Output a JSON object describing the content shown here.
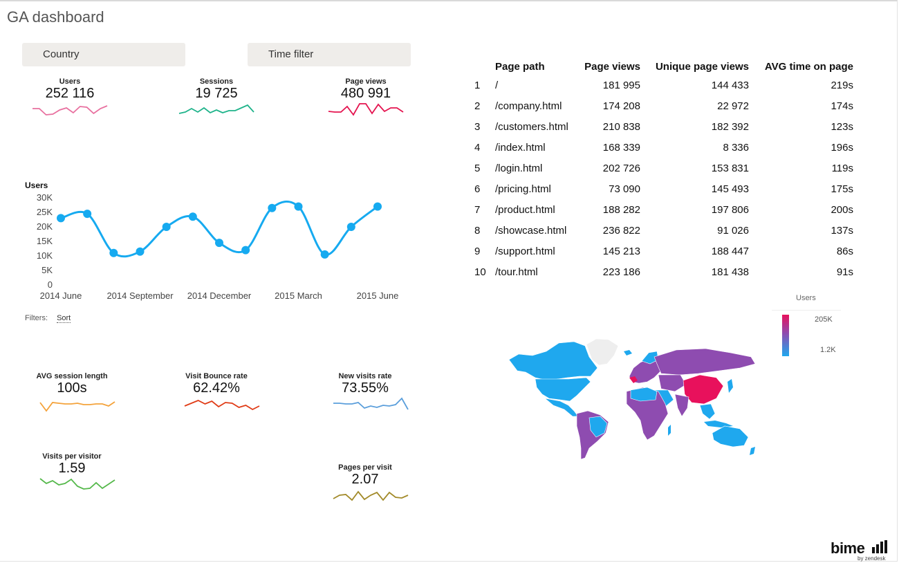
{
  "header": {
    "title": "GA dashboard"
  },
  "filters": {
    "country_label": "Country",
    "time_label": "Time filter"
  },
  "kpis_top": [
    {
      "label": "Users",
      "value": "252 116",
      "color": "#e8709f",
      "spark": [
        0.55,
        0.55,
        0.1,
        0.15,
        0.45,
        0.6,
        0.25,
        0.7,
        0.65,
        0.2,
        0.55,
        0.75
      ]
    },
    {
      "label": "Sessions",
      "value": "19 725",
      "color": "#1eb38a",
      "spark": [
        0.2,
        0.3,
        0.55,
        0.3,
        0.6,
        0.25,
        0.45,
        0.25,
        0.4,
        0.4,
        0.6,
        0.8,
        0.3
      ]
    },
    {
      "label": "Page views",
      "value": "480 991",
      "color": "#e4134f",
      "spark": [
        0.35,
        0.3,
        0.3,
        0.7,
        0.1,
        0.9,
        0.9,
        0.2,
        0.85,
        0.35,
        0.6,
        0.6,
        0.3
      ]
    }
  ],
  "users_chart": {
    "title": "Users",
    "color": "#16aaf0",
    "chart_data": {
      "type": "line",
      "x": [
        "2014-06",
        "2014-07",
        "2014-08",
        "2014-09",
        "2014-10",
        "2014-11",
        "2014-12",
        "2015-01",
        "2015-02",
        "2015-03",
        "2015-04",
        "2015-05",
        "2015-06"
      ],
      "values": [
        23000,
        24500,
        11000,
        11500,
        20000,
        23500,
        14500,
        12000,
        26500,
        27000,
        10500,
        20000,
        27000
      ],
      "ylim": [
        0,
        30000
      ],
      "ytick_labels": [
        "0",
        "5K",
        "10K",
        "15K",
        "20K",
        "25K",
        "30K"
      ],
      "xtick_labels": [
        "2014 June",
        "2014 September",
        "2014 December",
        "2015 March",
        "2015 June"
      ],
      "xtick_index": [
        0,
        3,
        6,
        9,
        12
      ]
    }
  },
  "filter_bar": {
    "label": "Filters:",
    "sort": "Sort"
  },
  "kpis_bottom": [
    {
      "label": "AVG session length",
      "value": "100s",
      "color": "#f4a23a",
      "spark": [
        0.6,
        0.0,
        0.6,
        0.55,
        0.5,
        0.5,
        0.55,
        0.45,
        0.45,
        0.5,
        0.5,
        0.35,
        0.65
      ]
    },
    {
      "label": "Visit Bounce rate",
      "value": "62.42%",
      "color": "#e03b16",
      "spark": [
        0.35,
        0.55,
        0.75,
        0.5,
        0.7,
        0.3,
        0.6,
        0.55,
        0.25,
        0.4,
        0.1,
        0.35
      ]
    },
    {
      "label": "New visits rate",
      "value": "73.55%",
      "color": "#5a9edb",
      "spark": [
        0.55,
        0.55,
        0.5,
        0.5,
        0.6,
        0.2,
        0.35,
        0.25,
        0.4,
        0.35,
        0.45,
        0.9,
        0.1
      ]
    },
    {
      "label": "Visits per visitor",
      "value": "1.59",
      "color": "#54b84a",
      "spark": [
        0.9,
        0.55,
        0.75,
        0.45,
        0.55,
        0.85,
        0.35,
        0.15,
        0.2,
        0.6,
        0.2,
        0.5,
        0.8
      ]
    },
    {
      "label": "Pages per visit",
      "value": "2.07",
      "color": "#a28a29",
      "spark": [
        0.25,
        0.5,
        0.55,
        0.15,
        0.75,
        0.2,
        0.5,
        0.7,
        0.15,
        0.7,
        0.35,
        0.3,
        0.5
      ]
    }
  ],
  "table": {
    "headers": [
      "Page path",
      "Page views",
      "Unique page views",
      "AVG time on page"
    ],
    "rows": [
      [
        "1",
        "/",
        "181 995",
        "144 433",
        "219s"
      ],
      [
        "2",
        "/company.html",
        "174 208",
        "22 972",
        "174s"
      ],
      [
        "3",
        "/customers.html",
        "210 838",
        "182 392",
        "123s"
      ],
      [
        "4",
        "/index.html",
        "168 339",
        "8 336",
        "196s"
      ],
      [
        "5",
        "/login.html",
        "202 726",
        "153 831",
        "119s"
      ],
      [
        "6",
        "/pricing.html",
        "73 090",
        "145 493",
        "175s"
      ],
      [
        "7",
        "/product.html",
        "188 282",
        "197 806",
        "200s"
      ],
      [
        "8",
        "/showcase.html",
        "236 822",
        "91 026",
        "137s"
      ],
      [
        "9",
        "/support.html",
        "145 213",
        "188 447",
        "86s"
      ],
      [
        "10",
        "/tour.html",
        "223 186",
        "181 438",
        "91s"
      ]
    ]
  },
  "map": {
    "legend_title": "Users",
    "legend_max": "205K",
    "legend_min": "1.2K",
    "colors": {
      "high": "#e8115c",
      "mid": "#8e4cb0",
      "low": "#1fa8ee",
      "nodata": "#eeeeee"
    }
  },
  "brand": {
    "name": "bime",
    "sub": "by zendesk"
  }
}
